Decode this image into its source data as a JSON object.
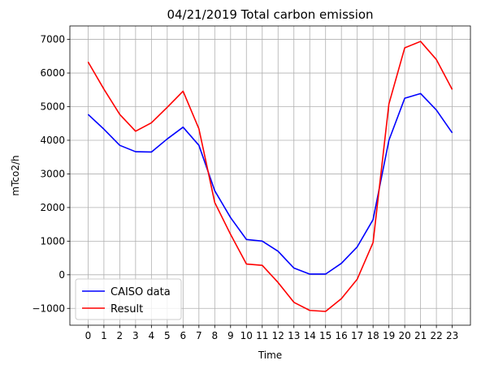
{
  "chart_data": {
    "type": "line",
    "title": "04/21/2019 Total carbon emission",
    "xlabel": "Time",
    "ylabel": "mTco2/h",
    "x": [
      0,
      1,
      2,
      3,
      4,
      5,
      6,
      7,
      8,
      9,
      10,
      11,
      12,
      13,
      14,
      15,
      16,
      17,
      18,
      19,
      20,
      21,
      22,
      23
    ],
    "xticks": [
      0,
      1,
      2,
      3,
      4,
      5,
      6,
      7,
      8,
      9,
      10,
      11,
      12,
      13,
      14,
      15,
      16,
      17,
      18,
      19,
      20,
      21,
      22,
      23
    ],
    "yticks": [
      -1000,
      0,
      1000,
      2000,
      3000,
      4000,
      5000,
      6000,
      7000
    ],
    "xlim": [
      -1.15,
      24.15
    ],
    "ylim": [
      -1500,
      7400
    ],
    "grid": true,
    "legend_position": "lower-left",
    "series": [
      {
        "name": "CAISO data",
        "color": "#0000ff",
        "values": [
          4770,
          4330,
          3850,
          3660,
          3650,
          4040,
          4390,
          3850,
          2500,
          1700,
          1050,
          1000,
          700,
          200,
          20,
          20,
          340,
          830,
          1640,
          4000,
          5250,
          5390,
          4900,
          4220
        ]
      },
      {
        "name": "Result",
        "color": "#ff0000",
        "values": [
          6330,
          5520,
          4770,
          4270,
          4520,
          4980,
          5460,
          4340,
          2150,
          1200,
          320,
          280,
          -230,
          -820,
          -1060,
          -1090,
          -710,
          -130,
          960,
          5080,
          6750,
          6940,
          6400,
          5510
        ]
      }
    ]
  }
}
